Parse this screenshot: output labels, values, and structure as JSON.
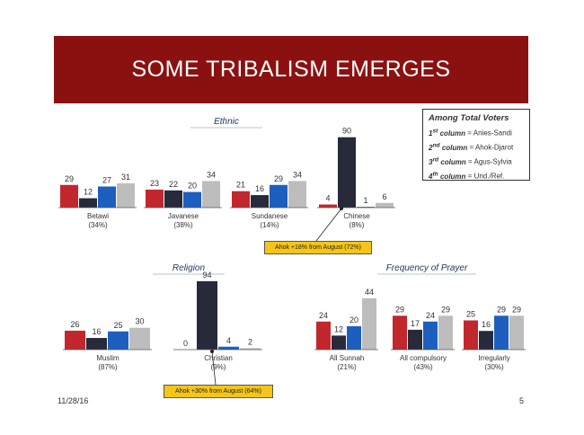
{
  "banner": {
    "title": "SOME TRIBALISM EMERGES"
  },
  "colors": [
    "#c1272d",
    "#262a3b",
    "#1c5fbf",
    "#bdbdbd"
  ],
  "legend": {
    "title": "Among Total Voters",
    "items": [
      {
        "ord": "1",
        "sup": "st",
        "word": "column",
        "value": "= Anies-Sandi"
      },
      {
        "ord": "2",
        "sup": "nd",
        "word": "column",
        "value": "= Ahok-Djarot"
      },
      {
        "ord": "3",
        "sup": "rd",
        "word": "column",
        "value": "= Agus-Sylvia"
      },
      {
        "ord": "4",
        "sup": "th",
        "word": "column",
        "value": "= Und./Ref."
      }
    ]
  },
  "chart_data": [
    {
      "type": "bar",
      "title": "Ethnic",
      "categories": [
        "Betawi",
        "Javanese",
        "Sundanese",
        "Chinese"
      ],
      "category_shares": [
        "(34%)",
        "(38%)",
        "(14%)",
        "(8%)"
      ],
      "series": [
        {
          "name": "Anies-Sandi",
          "values": [
            29,
            23,
            21,
            4
          ]
        },
        {
          "name": "Ahok-Djarot",
          "values": [
            12,
            22,
            16,
            90
          ]
        },
        {
          "name": "Agus-Sylvia",
          "values": [
            27,
            20,
            29,
            1
          ]
        },
        {
          "name": "Und./Ref.",
          "values": [
            31,
            34,
            34,
            6
          ]
        }
      ],
      "annotation": "Ahok +18% from August (72%)"
    },
    {
      "type": "bar",
      "title": "Religion",
      "categories": [
        "Muslim",
        "Christian"
      ],
      "category_shares": [
        "(87%)",
        "(9%)"
      ],
      "series": [
        {
          "name": "Anies-Sandi",
          "values": [
            26,
            0
          ]
        },
        {
          "name": "Ahok-Djarot",
          "values": [
            16,
            94
          ]
        },
        {
          "name": "Agus-Sylvia",
          "values": [
            25,
            4
          ]
        },
        {
          "name": "Und./Ref.",
          "values": [
            30,
            2
          ]
        }
      ],
      "annotation": "Ahok +30% from August (64%)"
    },
    {
      "type": "bar",
      "title": "Frequency of Prayer",
      "categories": [
        "All Sunnah",
        "All compulsory",
        "Irregularly"
      ],
      "category_shares": [
        "(21%)",
        "(43%)",
        "(30%)"
      ],
      "series": [
        {
          "name": "Anies-Sandi",
          "values": [
            24,
            29,
            25
          ]
        },
        {
          "name": "Ahok-Djarot",
          "values": [
            12,
            17,
            16
          ]
        },
        {
          "name": "Agus-Sylvia",
          "values": [
            20,
            24,
            29
          ]
        },
        {
          "name": "Und./Ref.",
          "values": [
            44,
            29,
            29
          ]
        }
      ]
    }
  ],
  "footer": {
    "date": "11/28/16",
    "page": "5"
  }
}
